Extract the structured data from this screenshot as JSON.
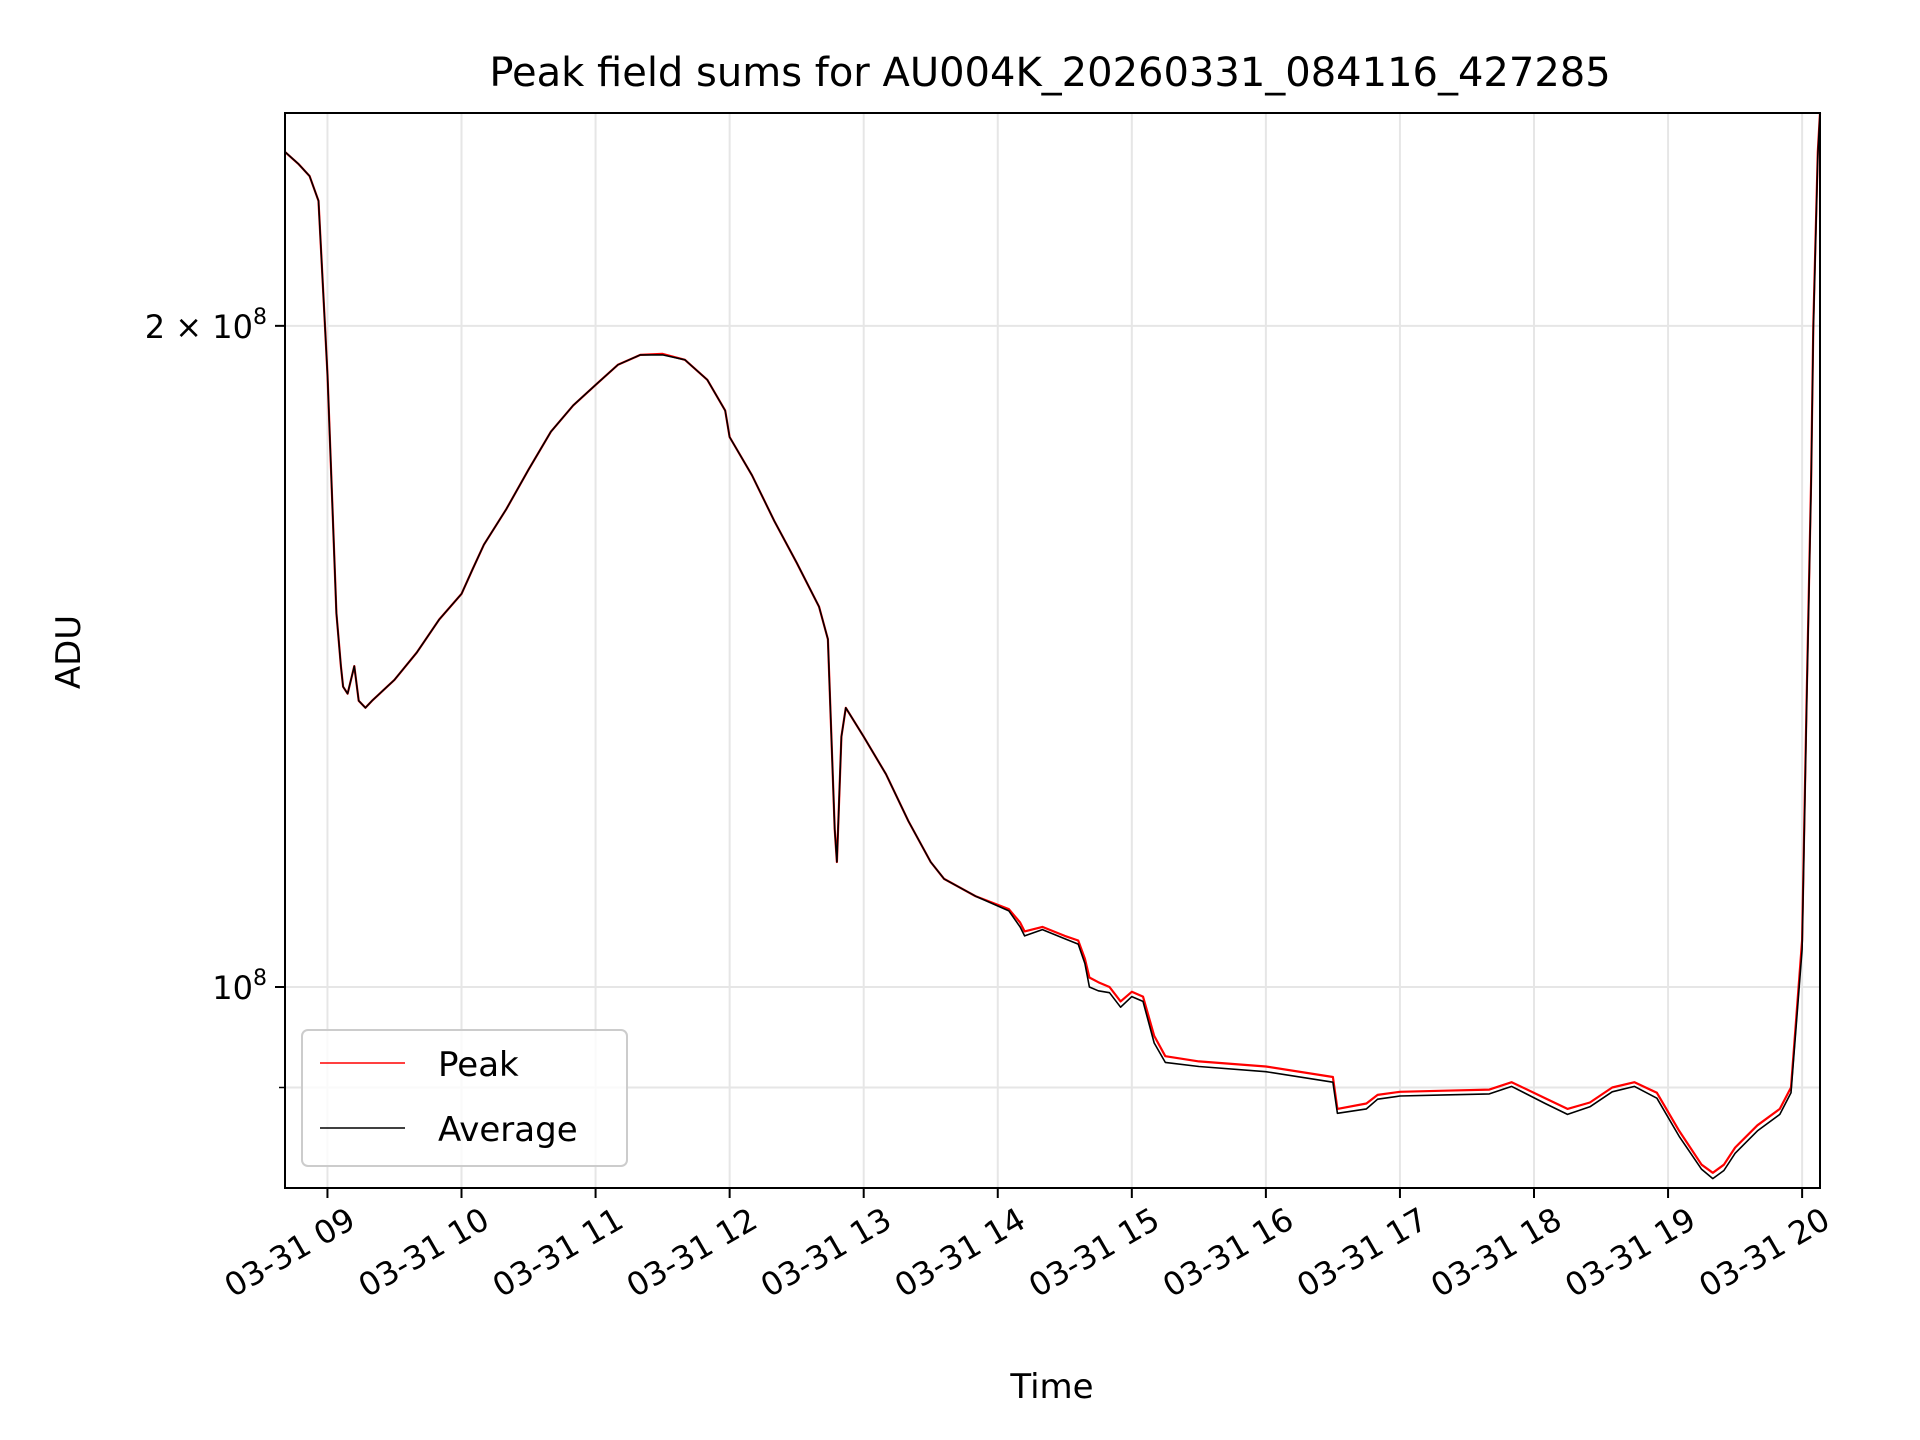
{
  "chart_data": {
    "type": "line",
    "title": "Peak field sums for AU004K_20260331_084116_427285",
    "xlabel": "Time",
    "ylabel": "ADU",
    "y_scale": "log",
    "grid": true,
    "legend_position": "lower-left",
    "xlim": [
      "2026-03-31 08:41",
      "2026-03-31 20:08"
    ],
    "ylim": [
      81000000,
      250000000
    ],
    "x_ticks": [
      {
        "value": "2026-03-31 09:00",
        "label": "03-31 09"
      },
      {
        "value": "2026-03-31 10:00",
        "label": "03-31 10"
      },
      {
        "value": "2026-03-31 11:00",
        "label": "03-31 11"
      },
      {
        "value": "2026-03-31 12:00",
        "label": "03-31 12"
      },
      {
        "value": "2026-03-31 13:00",
        "label": "03-31 13"
      },
      {
        "value": "2026-03-31 14:00",
        "label": "03-31 14"
      },
      {
        "value": "2026-03-31 15:00",
        "label": "03-31 15"
      },
      {
        "value": "2026-03-31 16:00",
        "label": "03-31 16"
      },
      {
        "value": "2026-03-31 17:00",
        "label": "03-31 17"
      },
      {
        "value": "2026-03-31 18:00",
        "label": "03-31 18"
      },
      {
        "value": "2026-03-31 19:00",
        "label": "03-31 19"
      },
      {
        "value": "2026-03-31 20:00",
        "label": "03-31 20"
      }
    ],
    "y_ticks_major": [
      {
        "value": 100000000,
        "base": "10",
        "exp": "8",
        "mant": ""
      },
      {
        "value": 200000000,
        "base": "10",
        "exp": "8",
        "mant": "2 × "
      }
    ],
    "y_ticks_minor": [
      90000000
    ],
    "series": [
      {
        "name": "Peak",
        "color": "#ff0000",
        "points": [
          [
            "2026-03-31 08:41",
            240000000
          ],
          [
            "2026-03-31 08:47",
            237000000
          ],
          [
            "2026-03-31 08:52",
            234000000
          ],
          [
            "2026-03-31 08:56",
            228000000
          ],
          [
            "2026-03-31 09:00",
            190000000
          ],
          [
            "2026-03-31 09:04",
            148000000
          ],
          [
            "2026-03-31 09:06",
            140000000
          ],
          [
            "2026-03-31 09:07",
            137000000
          ],
          [
            "2026-03-31 09:09",
            136000000
          ],
          [
            "2026-03-31 09:12",
            140000000
          ],
          [
            "2026-03-31 09:14",
            135000000
          ],
          [
            "2026-03-31 09:17",
            134000000
          ],
          [
            "2026-03-31 09:20",
            135000000
          ],
          [
            "2026-03-31 09:30",
            138000000
          ],
          [
            "2026-03-31 09:40",
            142000000
          ],
          [
            "2026-03-31 09:50",
            147000000
          ],
          [
            "2026-03-31 10:00",
            151000000
          ],
          [
            "2026-03-31 10:05",
            155000000
          ],
          [
            "2026-03-31 10:10",
            159000000
          ],
          [
            "2026-03-31 10:20",
            165000000
          ],
          [
            "2026-03-31 10:30",
            172000000
          ],
          [
            "2026-03-31 10:40",
            179000000
          ],
          [
            "2026-03-31 10:50",
            184000000
          ],
          [
            "2026-03-31 11:00",
            188000000
          ],
          [
            "2026-03-31 11:10",
            192000000
          ],
          [
            "2026-03-31 11:20",
            194000000
          ],
          [
            "2026-03-31 11:30",
            194200000
          ],
          [
            "2026-03-31 11:40",
            193000000
          ],
          [
            "2026-03-31 11:50",
            189000000
          ],
          [
            "2026-03-31 11:58",
            183000000
          ],
          [
            "2026-03-31 12:00",
            178000000
          ],
          [
            "2026-03-31 12:10",
            171000000
          ],
          [
            "2026-03-31 12:20",
            163000000
          ],
          [
            "2026-03-31 12:30",
            156000000
          ],
          [
            "2026-03-31 12:40",
            149000000
          ],
          [
            "2026-03-31 12:44",
            144000000
          ],
          [
            "2026-03-31 12:47",
            118000000
          ],
          [
            "2026-03-31 12:48",
            114000000
          ],
          [
            "2026-03-31 12:50",
            130000000
          ],
          [
            "2026-03-31 12:52",
            134000000
          ],
          [
            "2026-03-31 13:00",
            130000000
          ],
          [
            "2026-03-31 13:10",
            125000000
          ],
          [
            "2026-03-31 13:20",
            119000000
          ],
          [
            "2026-03-31 13:30",
            114000000
          ],
          [
            "2026-03-31 13:36",
            112000000
          ],
          [
            "2026-03-31 13:50",
            110000000
          ],
          [
            "2026-03-31 14:05",
            108500000
          ],
          [
            "2026-03-31 14:10",
            107000000
          ],
          [
            "2026-03-31 14:12",
            106000000
          ],
          [
            "2026-03-31 14:20",
            106500000
          ],
          [
            "2026-03-31 14:30",
            105500000
          ],
          [
            "2026-03-31 14:36",
            105000000
          ],
          [
            "2026-03-31 14:39",
            103000000
          ],
          [
            "2026-03-31 14:41",
            101000000
          ],
          [
            "2026-03-31 14:45",
            100500000
          ],
          [
            "2026-03-31 14:50",
            100000000
          ],
          [
            "2026-03-31 14:55",
            98500000
          ],
          [
            "2026-03-31 15:00",
            99500000
          ],
          [
            "2026-03-31 15:05",
            99000000
          ],
          [
            "2026-03-31 15:10",
            95000000
          ],
          [
            "2026-03-31 15:15",
            93000000
          ],
          [
            "2026-03-31 15:30",
            92500000
          ],
          [
            "2026-03-31 16:00",
            92000000
          ],
          [
            "2026-03-31 16:30",
            91000000
          ],
          [
            "2026-03-31 16:32",
            88000000
          ],
          [
            "2026-03-31 16:45",
            88500000
          ],
          [
            "2026-03-31 16:50",
            89300000
          ],
          [
            "2026-03-31 17:00",
            89600000
          ],
          [
            "2026-03-31 17:20",
            89700000
          ],
          [
            "2026-03-31 17:40",
            89800000
          ],
          [
            "2026-03-31 17:50",
            90500000
          ],
          [
            "2026-03-31 18:05",
            89000000
          ],
          [
            "2026-03-31 18:15",
            88000000
          ],
          [
            "2026-03-31 18:25",
            88600000
          ],
          [
            "2026-03-31 18:35",
            90000000
          ],
          [
            "2026-03-31 18:45",
            90500000
          ],
          [
            "2026-03-31 18:55",
            89500000
          ],
          [
            "2026-03-31 19:05",
            86000000
          ],
          [
            "2026-03-31 19:15",
            83000000
          ],
          [
            "2026-03-31 19:20",
            82300000
          ],
          [
            "2026-03-31 19:25",
            83000000
          ],
          [
            "2026-03-31 19:30",
            84500000
          ],
          [
            "2026-03-31 19:40",
            86500000
          ],
          [
            "2026-03-31 19:50",
            88000000
          ],
          [
            "2026-03-31 19:55",
            90000000
          ],
          [
            "2026-03-31 20:00",
            105000000
          ],
          [
            "2026-03-31 20:02",
            135000000
          ],
          [
            "2026-03-31 20:04",
            170000000
          ],
          [
            "2026-03-31 20:05",
            200000000
          ],
          [
            "2026-03-31 20:07",
            240000000
          ],
          [
            "2026-03-31 20:08",
            250000000
          ]
        ]
      },
      {
        "name": "Average",
        "color": "#000000",
        "points": [
          [
            "2026-03-31 08:41",
            240000000
          ],
          [
            "2026-03-31 08:47",
            237000000
          ],
          [
            "2026-03-31 08:52",
            234000000
          ],
          [
            "2026-03-31 08:56",
            228000000
          ],
          [
            "2026-03-31 09:00",
            190000000
          ],
          [
            "2026-03-31 09:04",
            148000000
          ],
          [
            "2026-03-31 09:06",
            140000000
          ],
          [
            "2026-03-31 09:07",
            137000000
          ],
          [
            "2026-03-31 09:09",
            136000000
          ],
          [
            "2026-03-31 09:12",
            140000000
          ],
          [
            "2026-03-31 09:14",
            135000000
          ],
          [
            "2026-03-31 09:17",
            134000000
          ],
          [
            "2026-03-31 09:20",
            135000000
          ],
          [
            "2026-03-31 09:30",
            138000000
          ],
          [
            "2026-03-31 09:40",
            142000000
          ],
          [
            "2026-03-31 09:50",
            147000000
          ],
          [
            "2026-03-31 10:00",
            151000000
          ],
          [
            "2026-03-31 10:05",
            155000000
          ],
          [
            "2026-03-31 10:10",
            159000000
          ],
          [
            "2026-03-31 10:20",
            165000000
          ],
          [
            "2026-03-31 10:30",
            172000000
          ],
          [
            "2026-03-31 10:40",
            179000000
          ],
          [
            "2026-03-31 10:50",
            184000000
          ],
          [
            "2026-03-31 11:00",
            188000000
          ],
          [
            "2026-03-31 11:10",
            192000000
          ],
          [
            "2026-03-31 11:20",
            194000000
          ],
          [
            "2026-03-31 11:30",
            194000000
          ],
          [
            "2026-03-31 11:40",
            193000000
          ],
          [
            "2026-03-31 11:50",
            189000000
          ],
          [
            "2026-03-31 11:58",
            183000000
          ],
          [
            "2026-03-31 12:00",
            178000000
          ],
          [
            "2026-03-31 12:10",
            171000000
          ],
          [
            "2026-03-31 12:20",
            163000000
          ],
          [
            "2026-03-31 12:30",
            156000000
          ],
          [
            "2026-03-31 12:40",
            149000000
          ],
          [
            "2026-03-31 12:44",
            144000000
          ],
          [
            "2026-03-31 12:47",
            118000000
          ],
          [
            "2026-03-31 12:48",
            114000000
          ],
          [
            "2026-03-31 12:50",
            130000000
          ],
          [
            "2026-03-31 12:52",
            134000000
          ],
          [
            "2026-03-31 13:00",
            130000000
          ],
          [
            "2026-03-31 13:10",
            125000000
          ],
          [
            "2026-03-31 13:20",
            119000000
          ],
          [
            "2026-03-31 13:30",
            114000000
          ],
          [
            "2026-03-31 13:36",
            112000000
          ],
          [
            "2026-03-31 13:50",
            110000000
          ],
          [
            "2026-03-31 14:05",
            108300000
          ],
          [
            "2026-03-31 14:10",
            106500000
          ],
          [
            "2026-03-31 14:12",
            105500000
          ],
          [
            "2026-03-31 14:20",
            106200000
          ],
          [
            "2026-03-31 14:30",
            105200000
          ],
          [
            "2026-03-31 14:36",
            104600000
          ],
          [
            "2026-03-31 14:39",
            102500000
          ],
          [
            "2026-03-31 14:41",
            100000000
          ],
          [
            "2026-03-31 14:45",
            99600000
          ],
          [
            "2026-03-31 14:50",
            99400000
          ],
          [
            "2026-03-31 14:55",
            97900000
          ],
          [
            "2026-03-31 15:00",
            99000000
          ],
          [
            "2026-03-31 15:05",
            98500000
          ],
          [
            "2026-03-31 15:10",
            94300000
          ],
          [
            "2026-03-31 15:15",
            92400000
          ],
          [
            "2026-03-31 15:30",
            92000000
          ],
          [
            "2026-03-31 16:00",
            91500000
          ],
          [
            "2026-03-31 16:30",
            90500000
          ],
          [
            "2026-03-31 16:32",
            87600000
          ],
          [
            "2026-03-31 16:45",
            88000000
          ],
          [
            "2026-03-31 16:50",
            88900000
          ],
          [
            "2026-03-31 17:00",
            89200000
          ],
          [
            "2026-03-31 17:20",
            89300000
          ],
          [
            "2026-03-31 17:40",
            89400000
          ],
          [
            "2026-03-31 17:50",
            90100000
          ],
          [
            "2026-03-31 18:05",
            88500000
          ],
          [
            "2026-03-31 18:15",
            87500000
          ],
          [
            "2026-03-31 18:25",
            88200000
          ],
          [
            "2026-03-31 18:35",
            89600000
          ],
          [
            "2026-03-31 18:45",
            90100000
          ],
          [
            "2026-03-31 18:55",
            89000000
          ],
          [
            "2026-03-31 19:05",
            85500000
          ],
          [
            "2026-03-31 19:15",
            82600000
          ],
          [
            "2026-03-31 19:20",
            81800000
          ],
          [
            "2026-03-31 19:25",
            82500000
          ],
          [
            "2026-03-31 19:30",
            84000000
          ],
          [
            "2026-03-31 19:40",
            86000000
          ],
          [
            "2026-03-31 19:50",
            87500000
          ],
          [
            "2026-03-31 19:55",
            89500000
          ],
          [
            "2026-03-31 20:00",
            104000000
          ],
          [
            "2026-03-31 20:02",
            134000000
          ],
          [
            "2026-03-31 20:04",
            169000000
          ],
          [
            "2026-03-31 20:05",
            199000000
          ],
          [
            "2026-03-31 20:07",
            239000000
          ],
          [
            "2026-03-31 20:08",
            250000000
          ]
        ]
      }
    ]
  },
  "colors": {
    "peak": "#ff0000",
    "average": "#000000",
    "grid": "#e6e6e6",
    "legend_border": "#cccccc"
  }
}
